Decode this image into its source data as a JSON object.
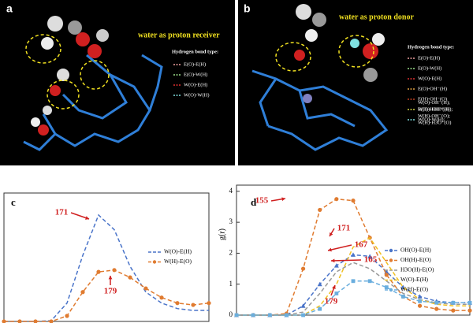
{
  "figure": {
    "a": {
      "label": "a",
      "caption": "water as proton receiver",
      "legend_title": "Hydrogen bond type:",
      "entries": [
        {
          "name": "E(O)-E(H)",
          "color": "#f0a0a0"
        },
        {
          "name": "E(O)-W(H)",
          "color": "#9be08a"
        },
        {
          "name": "W(O)-E(H)",
          "color": "#e03030"
        },
        {
          "name": "W(O)-W(H)",
          "color": "#7fe0e0"
        }
      ]
    },
    "b": {
      "label": "b",
      "caption": "water as proton donor",
      "legend_title": "Hydrogen bond type:",
      "entries": [
        {
          "name": "E(O)-E(H)",
          "color": "#f0a0a0"
        },
        {
          "name": "E(O)-W(H)",
          "color": "#9be08a"
        },
        {
          "name": "W(O)-E(H)",
          "color": "#e03030"
        },
        {
          "name": "E(O)-OH⁻(H)",
          "color": "#e0a040"
        },
        {
          "name": "E(H)-OH⁻(O)",
          "color": "#c04020"
        },
        {
          "name": "E(O)-H3O⁺(H)",
          "color": "#d0d040"
        },
        {
          "name": "W(O)-W(H);",
          "color": "#7fe0e0"
        }
      ],
      "entries_extra": [
        "W(O)-OH⁻(H);",
        "W(O)-H3O⁺(H);",
        "W(H)-OH⁻(O);",
        "W(H)-H3O⁺(O)"
      ]
    }
  },
  "chart_data": [
    {
      "type": "line",
      "label": "c",
      "xlim": [
        0,
        13
      ],
      "ylim": [
        0,
        3.5
      ],
      "x": [
        0,
        1,
        2,
        3,
        4,
        5,
        6,
        7,
        8,
        9,
        10,
        11,
        12,
        13
      ],
      "series": [
        {
          "name": "W(O)-E(H)",
          "color": "#4a74c9",
          "marker": "none",
          "values": [
            0,
            0,
            0,
            0.02,
            0.5,
            1.8,
            2.9,
            2.5,
            1.5,
            0.8,
            0.5,
            0.35,
            0.3,
            0.3
          ]
        },
        {
          "name": "W(H)-E(O)",
          "color": "#e07b30",
          "marker": "circle",
          "values": [
            0,
            0,
            0,
            0,
            0.15,
            0.8,
            1.35,
            1.4,
            1.2,
            0.9,
            0.65,
            0.5,
            0.45,
            0.5
          ]
        }
      ],
      "annotations": [
        "171",
        "179"
      ]
    },
    {
      "type": "line",
      "label": "d",
      "ylabel": "g(r)",
      "xlim": [
        0,
        14
      ],
      "ylim": [
        0,
        4.2
      ],
      "yticks": [
        0,
        1,
        2,
        3,
        4
      ],
      "x": [
        0,
        1,
        2,
        3,
        4,
        5,
        6,
        7,
        8,
        9,
        10,
        11,
        12,
        13,
        14
      ],
      "series": [
        {
          "name": "OH(O)-E(H)",
          "color": "#4a74c9",
          "marker": "triangle",
          "values": [
            0,
            0,
            0,
            0,
            0.3,
            1.0,
            1.6,
            1.95,
            1.9,
            1.4,
            0.9,
            0.6,
            0.45,
            0.4,
            0.4
          ]
        },
        {
          "name": "OH(H)-E(O)",
          "color": "#e07b30",
          "marker": "circle",
          "values": [
            0,
            0,
            0,
            0.05,
            1.5,
            3.4,
            3.75,
            3.7,
            2.5,
            1.3,
            0.6,
            0.3,
            0.2,
            0.15,
            0.15
          ]
        },
        {
          "name": "H3O(H)-E(O)",
          "color": "#999999",
          "marker": "none",
          "values": [
            0,
            0,
            0,
            0,
            0.1,
            0.7,
            1.4,
            1.7,
            1.5,
            1.1,
            0.7,
            0.5,
            0.4,
            0.35,
            0.35
          ]
        },
        {
          "name": "W(O)-E(H)",
          "color": "#f0c020",
          "marker": "none",
          "values": [
            0,
            0,
            0,
            0,
            0,
            0.3,
            1.0,
            2.2,
            2.5,
            1.7,
            0.9,
            0.5,
            0.35,
            0.3,
            0.3
          ]
        },
        {
          "name": "W(H)-E(O)",
          "color": "#6aaede",
          "marker": "square",
          "values": [
            0,
            0,
            0,
            0,
            0,
            0.2,
            0.7,
            1.1,
            1.1,
            0.9,
            0.6,
            0.45,
            0.4,
            0.4,
            0.4
          ]
        }
      ],
      "annotations": [
        "155",
        "171",
        "167",
        "165",
        "179"
      ]
    }
  ]
}
